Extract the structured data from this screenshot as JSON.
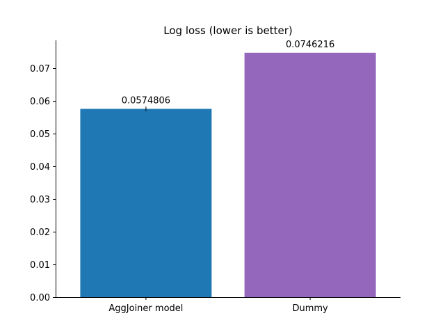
{
  "chart_data": {
    "type": "bar",
    "title": "Log loss (lower is better)",
    "xlabel": "",
    "ylabel": "",
    "categories": [
      "AggJoiner model",
      "Dummy"
    ],
    "values": [
      0.0574806,
      0.0746216
    ],
    "value_labels": [
      "0.0574806",
      "0.0746216"
    ],
    "error": [
      0.0007,
      0
    ],
    "colors": [
      "#1f77b4",
      "#9467bd"
    ],
    "ylim": [
      0,
      0.0784
    ],
    "yticks": [
      0.0,
      0.01,
      0.02,
      0.03,
      0.04,
      0.05,
      0.06,
      0.07
    ],
    "ytick_labels": [
      "0.00",
      "0.01",
      "0.02",
      "0.03",
      "0.04",
      "0.05",
      "0.06",
      "0.07"
    ],
    "grid": false,
    "legend": "none"
  }
}
